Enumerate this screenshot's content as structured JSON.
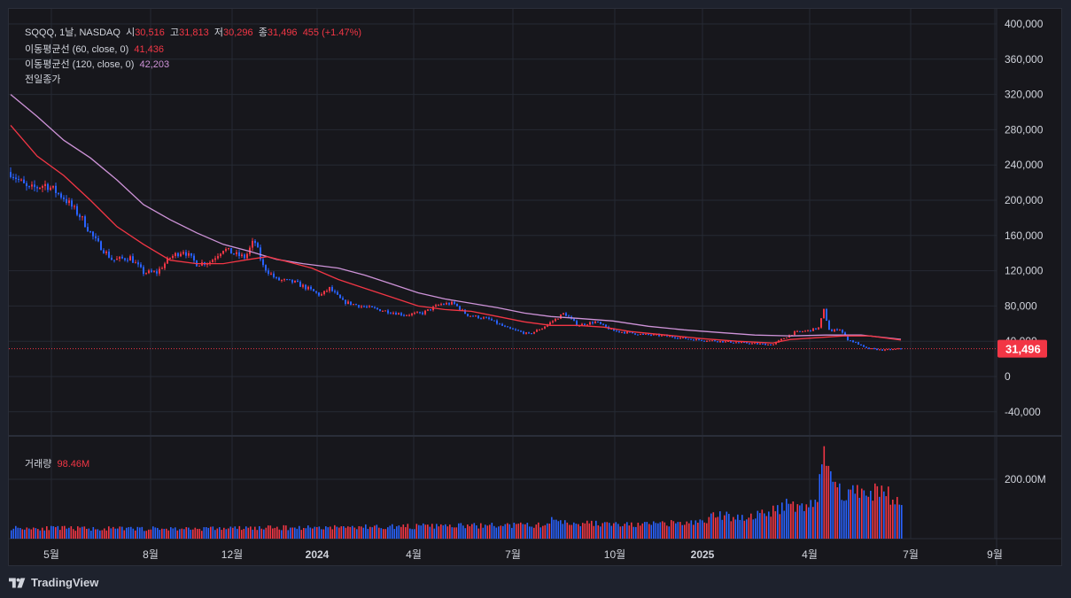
{
  "legend": {
    "symbol_line": "SQQQ, 1날, NASDAQ",
    "open_label": "시",
    "open": "30,516",
    "high_label": "고",
    "high": "31,813",
    "low_label": "저",
    "low": "30,296",
    "close_label": "종",
    "close": "31,496",
    "change": "455 (+1.47%)",
    "ma60_label": "이동평균선 (60, close, 0)",
    "ma60_value": "41,436",
    "ma120_label": "이동평균선 (120, close, 0)",
    "ma120_value": "42,203",
    "prev_close_label": "전일종가",
    "volume_label": "거래량",
    "volume_value": "98.46M"
  },
  "price_tag": "31,496",
  "brand": "TradingView",
  "colors": {
    "up": "#f23645",
    "down": "#2962ff",
    "ma60": "#f23645",
    "ma120": "#ce93d8",
    "background": "#17171c",
    "grid": "#262a33"
  },
  "chart_data": {
    "type": "candlestick",
    "y_axis": {
      "ticks": [
        "400,000",
        "360,000",
        "320,000",
        "280,000",
        "240,000",
        "200,000",
        "160,000",
        "120,000",
        "80,000",
        "40,000",
        "0",
        "-40,000"
      ],
      "tick_values": [
        400000,
        360000,
        320000,
        280000,
        240000,
        200000,
        160000,
        120000,
        80000,
        40000,
        0,
        -40000
      ],
      "ylim": [
        -40000,
        400000
      ]
    },
    "x_axis": {
      "labels": [
        "5월",
        "8월",
        "12월",
        "2024",
        "4월",
        "7월",
        "10월",
        "2025",
        "4월",
        "7월",
        "9월"
      ],
      "bold": [
        false,
        false,
        false,
        true,
        false,
        false,
        false,
        true,
        false,
        false,
        false
      ]
    },
    "volume_axis": {
      "ticks": [
        "200.00M"
      ],
      "tick_values": [
        200000000
      ]
    },
    "price_path": {
      "description_points": [
        [
          0,
          232000
        ],
        [
          20,
          212000
        ],
        [
          40,
          218000
        ],
        [
          60,
          203000
        ],
        [
          80,
          180000
        ],
        [
          95,
          155000
        ],
        [
          115,
          132000
        ],
        [
          135,
          135000
        ],
        [
          150,
          118000
        ],
        [
          165,
          118000
        ],
        [
          180,
          135000
        ],
        [
          195,
          143000
        ],
        [
          210,
          128000
        ],
        [
          225,
          130000
        ],
        [
          240,
          145000
        ],
        [
          255,
          138000
        ],
        [
          265,
          135000
        ],
        [
          275,
          155000
        ],
        [
          285,
          125000
        ],
        [
          300,
          110000
        ],
        [
          320,
          107000
        ],
        [
          335,
          100000
        ],
        [
          350,
          92000
        ],
        [
          360,
          100000
        ],
        [
          375,
          85000
        ],
        [
          395,
          80000
        ],
        [
          420,
          75000
        ],
        [
          445,
          70000
        ],
        [
          465,
          72000
        ],
        [
          485,
          82000
        ],
        [
          500,
          83000
        ],
        [
          515,
          70000
        ],
        [
          540,
          65000
        ],
        [
          560,
          55000
        ],
        [
          585,
          48000
        ],
        [
          600,
          55000
        ],
        [
          615,
          65000
        ],
        [
          625,
          72000
        ],
        [
          640,
          58000
        ],
        [
          660,
          62000
        ],
        [
          680,
          52000
        ],
        [
          710,
          48000
        ],
        [
          740,
          46000
        ],
        [
          770,
          42000
        ],
        [
          800,
          40000
        ],
        [
          830,
          38000
        ],
        [
          860,
          36000
        ],
        [
          870,
          42000
        ],
        [
          885,
          50000
        ],
        [
          900,
          52000
        ],
        [
          912,
          55000
        ],
        [
          918,
          75000
        ],
        [
          925,
          50000
        ],
        [
          935,
          55000
        ],
        [
          945,
          42000
        ],
        [
          955,
          38000
        ],
        [
          965,
          32000
        ],
        [
          985,
          30000
        ],
        [
          1005,
          31496
        ]
      ]
    },
    "ma60_path": [
      [
        0,
        285000
      ],
      [
        30,
        250000
      ],
      [
        60,
        228000
      ],
      [
        90,
        200000
      ],
      [
        120,
        170000
      ],
      [
        150,
        150000
      ],
      [
        180,
        132000
      ],
      [
        210,
        128000
      ],
      [
        240,
        128000
      ],
      [
        270,
        133000
      ],
      [
        290,
        136000
      ],
      [
        310,
        131000
      ],
      [
        340,
        123000
      ],
      [
        370,
        110000
      ],
      [
        400,
        100000
      ],
      [
        430,
        90000
      ],
      [
        460,
        80000
      ],
      [
        490,
        76000
      ],
      [
        520,
        74000
      ],
      [
        550,
        68000
      ],
      [
        580,
        62000
      ],
      [
        610,
        58000
      ],
      [
        640,
        58000
      ],
      [
        670,
        56000
      ],
      [
        700,
        51000
      ],
      [
        740,
        47000
      ],
      [
        780,
        43000
      ],
      [
        820,
        40000
      ],
      [
        860,
        38000
      ],
      [
        880,
        42000
      ],
      [
        910,
        44000
      ],
      [
        940,
        46000
      ],
      [
        970,
        46000
      ],
      [
        1005,
        41436
      ]
    ],
    "ma120_path": [
      [
        0,
        320000
      ],
      [
        30,
        295000
      ],
      [
        60,
        268000
      ],
      [
        90,
        248000
      ],
      [
        120,
        223000
      ],
      [
        150,
        195000
      ],
      [
        180,
        178000
      ],
      [
        210,
        163000
      ],
      [
        240,
        150000
      ],
      [
        270,
        142000
      ],
      [
        300,
        133000
      ],
      [
        330,
        128000
      ],
      [
        370,
        123000
      ],
      [
        400,
        115000
      ],
      [
        430,
        105000
      ],
      [
        460,
        95000
      ],
      [
        490,
        88000
      ],
      [
        520,
        83000
      ],
      [
        550,
        78000
      ],
      [
        580,
        72000
      ],
      [
        610,
        68000
      ],
      [
        640,
        66000
      ],
      [
        680,
        63000
      ],
      [
        720,
        57000
      ],
      [
        760,
        53000
      ],
      [
        800,
        50000
      ],
      [
        840,
        47000
      ],
      [
        880,
        46000
      ],
      [
        920,
        47000
      ],
      [
        960,
        47000
      ],
      [
        1005,
        42203
      ]
    ],
    "volume_profile": [
      [
        0,
        0.12
      ],
      [
        100,
        0.11
      ],
      [
        200,
        0.11
      ],
      [
        300,
        0.12
      ],
      [
        400,
        0.13
      ],
      [
        500,
        0.14
      ],
      [
        600,
        0.15
      ],
      [
        615,
        0.22
      ],
      [
        625,
        0.18
      ],
      [
        700,
        0.15
      ],
      [
        780,
        0.18
      ],
      [
        790,
        0.25
      ],
      [
        830,
        0.24
      ],
      [
        860,
        0.3
      ],
      [
        875,
        0.4
      ],
      [
        895,
        0.35
      ],
      [
        910,
        0.45
      ],
      [
        918,
        0.95
      ],
      [
        922,
        0.8
      ],
      [
        930,
        0.55
      ],
      [
        960,
        0.5
      ],
      [
        980,
        0.55
      ],
      [
        1005,
        0.36
      ]
    ]
  }
}
